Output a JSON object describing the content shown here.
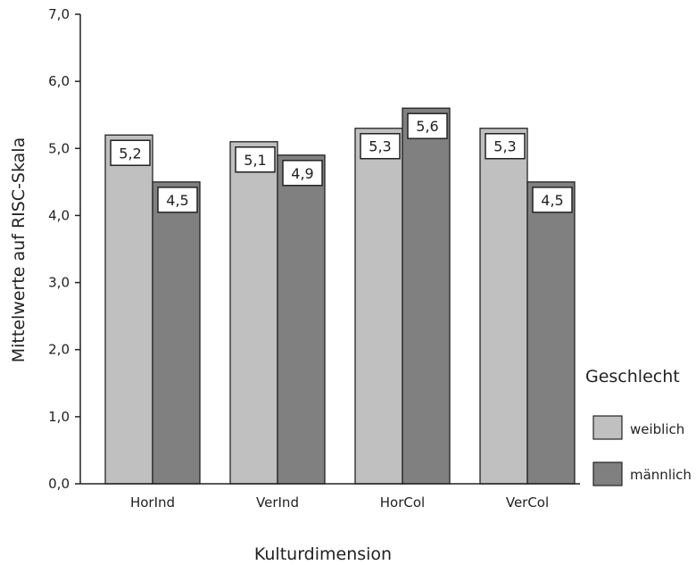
{
  "chart_data": {
    "type": "bar",
    "title": "",
    "xlabel": "Kulturdimension",
    "ylabel": "Mittelwerte auf RISC-Skala",
    "ylim": [
      0,
      7
    ],
    "yticks": [
      "0,0",
      "1,0",
      "2,0",
      "3,0",
      "4,0",
      "5,0",
      "6,0",
      "7,0"
    ],
    "categories": [
      "HorInd",
      "VerInd",
      "HorCol",
      "VerCol"
    ],
    "series": [
      {
        "name": "weiblich",
        "color": "#c0c0c0",
        "values": [
          5.2,
          5.1,
          5.3,
          5.3
        ],
        "labels": [
          "5,2",
          "5,1",
          "5,3",
          "5,3"
        ]
      },
      {
        "name": "männlich",
        "color": "#808080",
        "values": [
          4.5,
          4.9,
          5.6,
          4.5
        ],
        "labels": [
          "4,5",
          "4,9",
          "5,6",
          "4,5"
        ]
      }
    ],
    "legend": {
      "title": "Geschlecht",
      "position": "right"
    },
    "grid": false
  }
}
